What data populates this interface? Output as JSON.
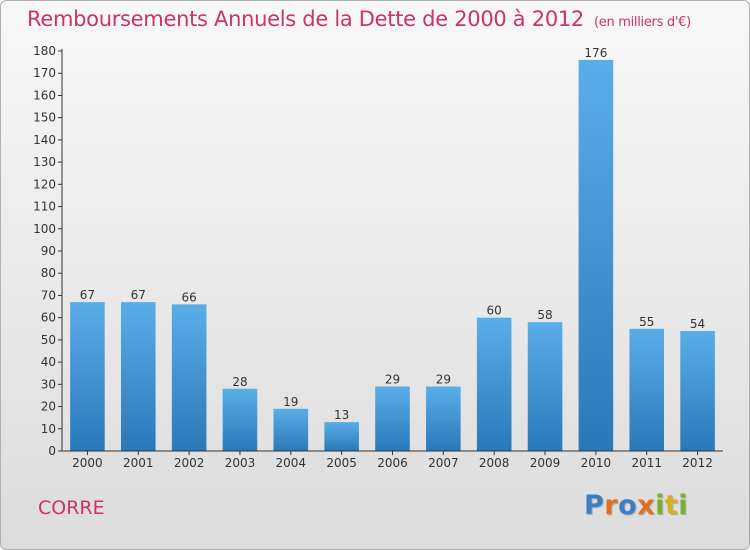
{
  "title": "Remboursements Annuels de la Dette de 2000 à 2012",
  "unit_note": "(en milliers d'€)",
  "commune": "CORRE",
  "logo_text": "Proxiti",
  "colors": {
    "title": "#cc3366",
    "bar_top": "#5aaee8",
    "bar_bottom": "#2a78b8",
    "axis": "#333333"
  },
  "chart_data": {
    "type": "bar",
    "title": "Remboursements Annuels de la Dette de 2000 à 2012",
    "categories": [
      "2000",
      "2001",
      "2002",
      "2003",
      "2004",
      "2005",
      "2006",
      "2007",
      "2008",
      "2009",
      "2010",
      "2011",
      "2012"
    ],
    "values": [
      67,
      67,
      66,
      28,
      19,
      13,
      29,
      29,
      60,
      58,
      176,
      55,
      54
    ],
    "ylim": [
      0,
      180
    ],
    "yticks": [
      0,
      10,
      20,
      30,
      40,
      50,
      60,
      70,
      80,
      90,
      100,
      110,
      120,
      130,
      140,
      150,
      160,
      170,
      180
    ],
    "xlabel": "",
    "ylabel": "",
    "grid": false
  }
}
